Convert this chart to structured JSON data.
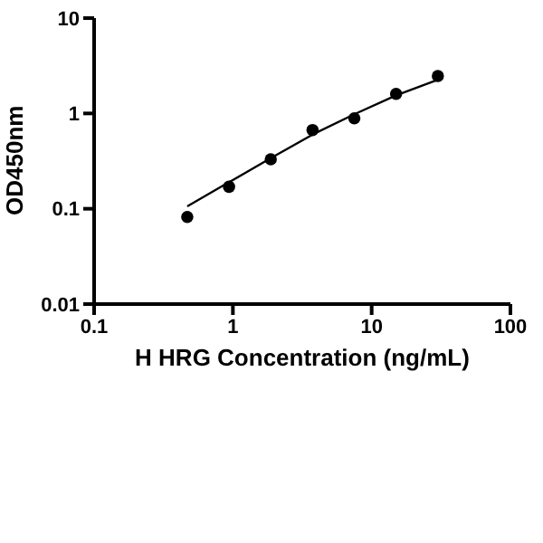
{
  "chart_data": {
    "type": "scatter",
    "xlabel": "H HRG Concentration (ng/mL)",
    "ylabel": "OD450nm",
    "log": "xy",
    "grid": false,
    "legend": false,
    "marker": "circle",
    "xlim": [
      0.1,
      100
    ],
    "xticks": [
      0.1,
      1,
      10,
      100
    ],
    "ylim": [
      0.01,
      10
    ],
    "yticks": [
      0.01,
      0.1,
      1,
      10
    ],
    "series": [
      {
        "color": "#000000",
        "x": [
          0.469,
          0.938,
          1.875,
          3.75,
          7.5,
          15,
          30
        ],
        "values": [
          0.082,
          0.17,
          0.33,
          0.67,
          0.89,
          1.6,
          2.47
        ]
      },
      {
        "type": "line",
        "color": "#000000",
        "marker": "none",
        "line_style": "solid",
        "x": [
          0.469,
          0.938,
          1.875,
          3.75,
          7.5,
          15,
          30
        ],
        "values": [
          0.106,
          0.19,
          0.34,
          0.6,
          0.98,
          1.55,
          2.25
        ]
      }
    ]
  }
}
